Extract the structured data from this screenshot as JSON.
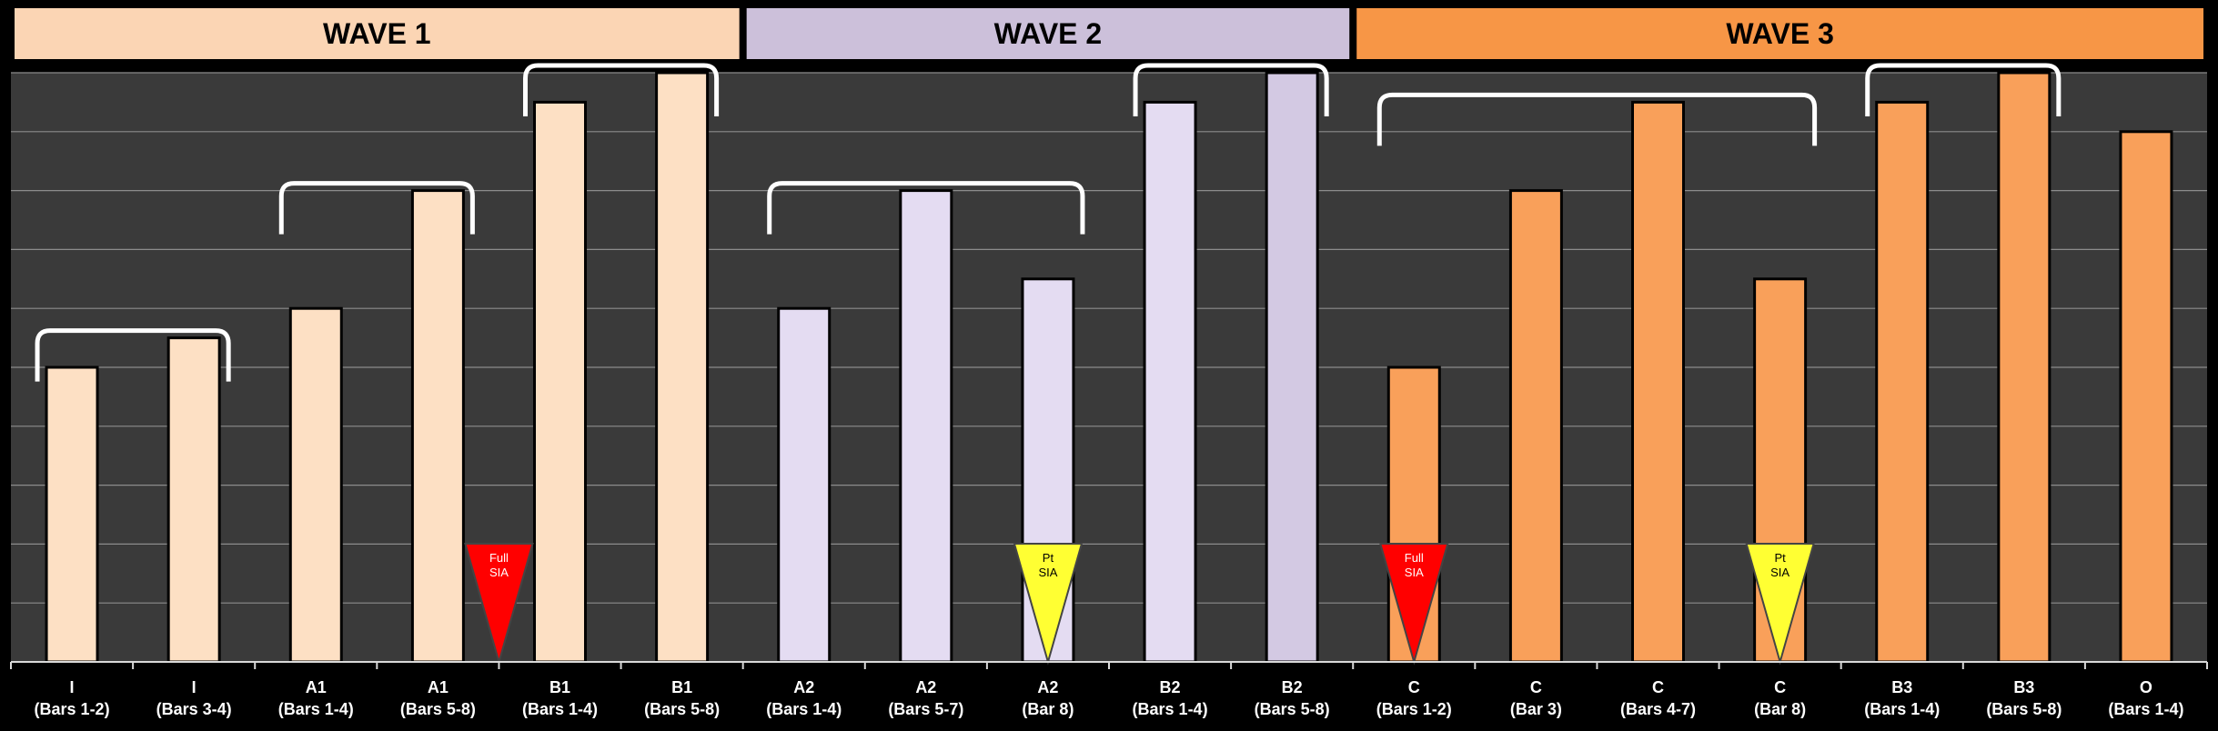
{
  "chart_data": {
    "type": "bar",
    "title": "",
    "xlabel": "",
    "ylabel": "",
    "ylim": [
      0,
      10
    ],
    "grid": true,
    "waves": [
      {
        "label": "WAVE 1",
        "color": "#fbd5b4",
        "first": 0,
        "last": 5
      },
      {
        "label": "WAVE 2",
        "color": "#ccc0da",
        "first": 6,
        "last": 10
      },
      {
        "label": "WAVE 3",
        "color": "#f79646",
        "first": 11,
        "last": 17
      }
    ],
    "categories": [
      {
        "name": "I",
        "sub": "(Bars 1-2)",
        "value": 5.0,
        "color": "#fde0c4"
      },
      {
        "name": "I",
        "sub": "(Bars 3-4)",
        "value": 5.5,
        "color": "#fde0c4"
      },
      {
        "name": "A1",
        "sub": "(Bars 1-4)",
        "value": 6.0,
        "color": "#fde0c4"
      },
      {
        "name": "A1",
        "sub": "(Bars 5-8)",
        "value": 8.0,
        "color": "#fde0c4"
      },
      {
        "name": "B1",
        "sub": "(Bars 1-4)",
        "value": 9.5,
        "color": "#fde0c4"
      },
      {
        "name": "B1",
        "sub": "(Bars 5-8)",
        "value": 10.0,
        "color": "#fde0c4"
      },
      {
        "name": "A2",
        "sub": "(Bars 1-4)",
        "value": 6.0,
        "color": "#e4dcf2"
      },
      {
        "name": "A2",
        "sub": "(Bars 5-7)",
        "value": 8.0,
        "color": "#e4dcf2"
      },
      {
        "name": "A2",
        "sub": "(Bar 8)",
        "value": 6.5,
        "color": "#e4dcf2"
      },
      {
        "name": "B2",
        "sub": "(Bars 1-4)",
        "value": 9.5,
        "color": "#e4dcf2"
      },
      {
        "name": "B2",
        "sub": "(Bars 5-8)",
        "value": 10.0,
        "color": "#d3c9e3"
      },
      {
        "name": "C",
        "sub": "(Bars 1-2)",
        "value": 5.0,
        "color": "#f9a05a"
      },
      {
        "name": "C",
        "sub": "(Bar 3)",
        "value": 8.0,
        "color": "#f9a05a"
      },
      {
        "name": "C",
        "sub": "(Bars 4-7)",
        "value": 9.5,
        "color": "#f9a05a"
      },
      {
        "name": "C",
        "sub": "(Bar 8)",
        "value": 6.5,
        "color": "#f9a05a"
      },
      {
        "name": "B3",
        "sub": "(Bars 1-4)",
        "value": 9.5,
        "color": "#f9a05a"
      },
      {
        "name": "B3",
        "sub": "(Bars 5-8)",
        "value": 10.0,
        "color": "#f9a05a"
      },
      {
        "name": "O",
        "sub": "(Bars 1-4)",
        "value": 9.0,
        "color": "#f9a05a"
      }
    ],
    "brackets": [
      {
        "from": 0,
        "to": 1,
        "value": 5.5
      },
      {
        "from": 2,
        "to": 3,
        "value": 8.0
      },
      {
        "from": 4,
        "to": 5,
        "value": 10.0
      },
      {
        "from": 6,
        "to": 8,
        "value": 8.0
      },
      {
        "from": 9,
        "to": 10,
        "value": 10.0
      },
      {
        "from": 11,
        "to": 14,
        "value": 9.5
      },
      {
        "from": 15,
        "to": 16,
        "value": 10.0
      }
    ],
    "markers": [
      {
        "between": [
          3,
          4
        ],
        "lines": [
          "Full",
          "SIA"
        ],
        "color": "#ff0000",
        "text_color": "#ffffff"
      },
      {
        "at": 8,
        "lines": [
          "Pt",
          "SIA"
        ],
        "color": "#ffff33",
        "text_color": "#000000"
      },
      {
        "at": 11,
        "lines": [
          "Full",
          "SIA"
        ],
        "color": "#ff0000",
        "text_color": "#ffffff"
      },
      {
        "at": 14,
        "lines": [
          "Pt",
          "SIA"
        ],
        "color": "#ffff33",
        "text_color": "#000000"
      }
    ]
  }
}
